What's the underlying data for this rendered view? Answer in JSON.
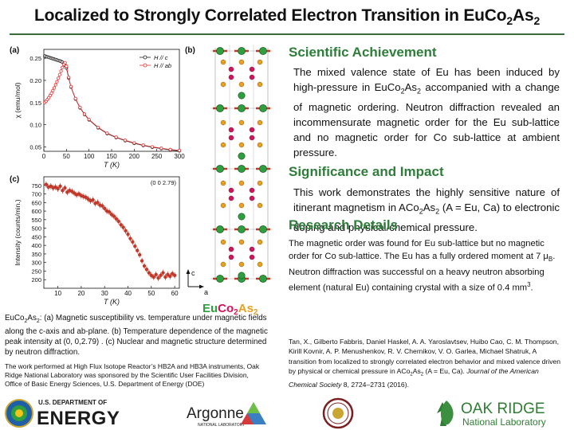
{
  "title": {
    "prefix": "Localized to Strongly Correlated Electron Transition in EuCo",
    "sub1": "2",
    "mid": "As",
    "sub2": "2"
  },
  "achievement": {
    "heading": "Scientific Achievement",
    "p1": "The mixed valence state of Eu has been induced by high-pressure in EuCo",
    "sub1": "2",
    "p2": "As",
    "sub2": "2",
    "p3": " accompanied with a change of magnetic ordering. Neutron diffraction revealed an incommensurate magnetic order for the Eu sub-lattice and no magnetic order for Co sub-lattice at ambient pressure."
  },
  "significance": {
    "heading": "Significance and Impact",
    "p1": "This work demonstrates the highly sensitive nature of itinerant magnetism in ACo",
    "sub1": "2",
    "p2": "As",
    "sub2": "2",
    "p3": " (A = Eu, Ca) to electronic doping and physical/chemical pressure."
  },
  "details": {
    "heading": "Research Details",
    "p1": "The magnetic order was found for Eu sub-lattice but no magnetic order for Co sub-lattice. The Eu has a fully ordered moment at 7 μ",
    "sub_b": "B",
    "p2": ".  Neutron diffraction was successful on a heavy neutron absorbing element (natural Eu) containing crystal with a size of 0.4 mm",
    "sup3": "3",
    "p3": "."
  },
  "reference": {
    "authors": "Tan, X., Gilberto Fabbris, Daniel Haskel, A. A. Yaroslavtsev, Huibo Cao, C. M. Thompson, Kirill Kovnir, A. P. Menushenkov, R. V. Chernikov, V. O. Garlea, Michael Shatruk, A transition from localized to strongly correlated electron behavior and mixed valence driven by physical or chemical pressure in ACo",
    "sub1": "2",
    "mid": "As",
    "sub2": "2",
    "tail": " (A = Eu, Ca).",
    "journal": "Journal of the American Chemical Society",
    "volume": " 8, 2724–2731 (2016)."
  },
  "caption": {
    "p1": "EuCo",
    "sub1": "2",
    "p2": "As",
    "sub2": "2",
    "p3": ": (a) Magnetic susceptibility vs. temperature under  magnetic fields along the c-axis and ab-plane.  (b) Temperature dependence of the magnetic peak intensity at (0, 0,2.79) . (c) Nuclear and magnetic structure determined by neutron diffraction."
  },
  "funding": "The work performed at High Flux Isotope Reactor’s HB2A and HB3A instruments, Oak Ridge National Laboratory was sponsored by the Scientific User Facilities Division, Office of Basic Energy Sciences, U.S. Department of Energy (DOE)",
  "panel_labels": {
    "a": "(a)",
    "b": "(b)",
    "c": "(c)"
  },
  "structure": {
    "formula_eu": "Eu",
    "formula_co": "Co",
    "sub1": "2",
    "formula_as": "As",
    "sub2": "2",
    "axis_c": "c",
    "axis_a": "a",
    "colors": {
      "eu": "#2e9e3e",
      "co": "#d4145a",
      "as": "#e8a020"
    }
  },
  "logos": {
    "doe_top": "U.S. DEPARTMENT OF",
    "doe_main": "ENERGY",
    "argonne": "Argonne",
    "argonne_sub": "NATIONAL LABORATORY",
    "ornl_main": "OAK RIDGE",
    "ornl_sub": "National Laboratory"
  },
  "chart_data": [
    {
      "type": "scatter",
      "panel": "a",
      "ylabel": "χ (emu/mol)",
      "xlabel": "T (K)",
      "xlim": [
        0,
        300
      ],
      "ylim": [
        0.04,
        0.27
      ],
      "xticks": [
        0,
        50,
        100,
        150,
        200,
        250,
        300
      ],
      "yticks": [
        0.05,
        0.1,
        0.15,
        0.2,
        0.25
      ],
      "ytick_labels": [
        "0.05",
        "0.10",
        "0.15",
        "0.20",
        "0.25"
      ],
      "series": [
        {
          "name": "H // c",
          "color": "#222222",
          "x": [
            2,
            5,
            8,
            11,
            14,
            17,
            20,
            23,
            26,
            29,
            32,
            35,
            38,
            41,
            44,
            47,
            50,
            55,
            60,
            70,
            80,
            90,
            100,
            120,
            140,
            160,
            180,
            200,
            220,
            240,
            260,
            280,
            300
          ],
          "y": [
            0.255,
            0.254,
            0.253,
            0.252,
            0.251,
            0.25,
            0.249,
            0.248,
            0.247,
            0.246,
            0.245,
            0.244,
            0.243,
            0.241,
            0.238,
            0.234,
            0.228,
            0.205,
            0.185,
            0.158,
            0.138,
            0.123,
            0.111,
            0.093,
            0.08,
            0.071,
            0.064,
            0.058,
            0.053,
            0.049,
            0.046,
            0.043,
            0.041
          ]
        },
        {
          "name": "H // ab",
          "color": "#e53030",
          "x": [
            2,
            5,
            8,
            11,
            14,
            17,
            20,
            23,
            26,
            29,
            32,
            35,
            38,
            41,
            44,
            47,
            50,
            55,
            60,
            70,
            80,
            90,
            100,
            120,
            140,
            160,
            180,
            200,
            220,
            240,
            260,
            280,
            300
          ],
          "y": [
            0.15,
            0.153,
            0.157,
            0.161,
            0.166,
            0.171,
            0.177,
            0.183,
            0.19,
            0.197,
            0.205,
            0.213,
            0.221,
            0.229,
            0.236,
            0.24,
            0.232,
            0.207,
            0.186,
            0.159,
            0.139,
            0.124,
            0.112,
            0.094,
            0.081,
            0.072,
            0.065,
            0.059,
            0.054,
            0.05,
            0.047,
            0.044,
            0.042
          ]
        }
      ]
    },
    {
      "type": "scatter",
      "panel": "c",
      "title": "(0 0 2.79)",
      "ylabel": "Intensity (counts/min.)",
      "xlabel": "T (K)",
      "xlim": [
        4,
        62
      ],
      "ylim": [
        150,
        800
      ],
      "xticks": [
        10,
        20,
        30,
        40,
        50,
        60
      ],
      "yticks": [
        200,
        250,
        300,
        350,
        400,
        450,
        500,
        550,
        600,
        650,
        700,
        750
      ],
      "series": [
        {
          "name": "(0 0 2.79)",
          "color": "#c0392b",
          "x": [
            5,
            6,
            7,
            8,
            9,
            10,
            11,
            12,
            13,
            14,
            15,
            16,
            17,
            18,
            19,
            20,
            21,
            22,
            23,
            24,
            25,
            26,
            27,
            28,
            29,
            30,
            31,
            32,
            33,
            34,
            35,
            36,
            37,
            38,
            39,
            40,
            41,
            42,
            43,
            44,
            45,
            46,
            47,
            48,
            49,
            50,
            51,
            52,
            53,
            54,
            55,
            56,
            57,
            58,
            59,
            60
          ],
          "y": [
            755,
            740,
            745,
            735,
            740,
            730,
            745,
            720,
            735,
            710,
            720,
            715,
            705,
            695,
            700,
            690,
            685,
            680,
            670,
            660,
            665,
            645,
            650,
            635,
            630,
            615,
            600,
            595,
            580,
            570,
            555,
            540,
            520,
            505,
            485,
            465,
            440,
            420,
            395,
            370,
            345,
            310,
            280,
            260,
            240,
            225,
            215,
            230,
            210,
            225,
            240,
            215,
            230,
            220,
            235,
            225
          ]
        }
      ]
    }
  ]
}
